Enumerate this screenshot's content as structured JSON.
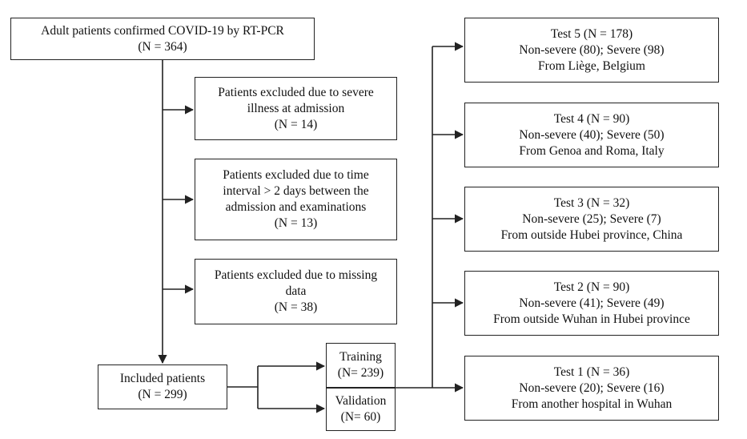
{
  "source": {
    "lines": [
      "Adult patients confirmed COVID-19 by RT-PCR",
      "(N = 364)"
    ]
  },
  "exclusions": [
    {
      "lines": [
        "Patients excluded due to severe",
        "illness at admission",
        "(N = 14)"
      ]
    },
    {
      "lines": [
        "Patients excluded due to time",
        "interval > 2 days between the",
        "admission and examinations",
        "(N = 13)"
      ]
    },
    {
      "lines": [
        "Patients excluded due to missing",
        "data",
        "(N = 38)"
      ]
    }
  ],
  "included": {
    "lines": [
      "Included patients",
      "(N = 299)"
    ]
  },
  "training": {
    "lines": [
      "Training",
      "(N= 239)"
    ]
  },
  "validation": {
    "lines": [
      "Validation",
      "(N= 60)"
    ]
  },
  "tests": [
    {
      "lines": [
        "Test 5 (N = 178)",
        "Non-severe (80); Severe (98)",
        "From Liège, Belgium"
      ]
    },
    {
      "lines": [
        "Test 4 (N = 90)",
        "Non-severe (40); Severe (50)",
        "From Genoa and Roma, Italy"
      ]
    },
    {
      "lines": [
        "Test 3 (N = 32)",
        "Non-severe (25); Severe (7)",
        "From outside Hubei province, China"
      ]
    },
    {
      "lines": [
        "Test 2 (N = 90)",
        "Non-severe (41); Severe (49)",
        "From outside Wuhan in Hubei province"
      ]
    },
    {
      "lines": [
        "Test 1 (N = 36)",
        "Non-severe (20); Severe (16)",
        "From another hospital in Wuhan"
      ]
    }
  ]
}
